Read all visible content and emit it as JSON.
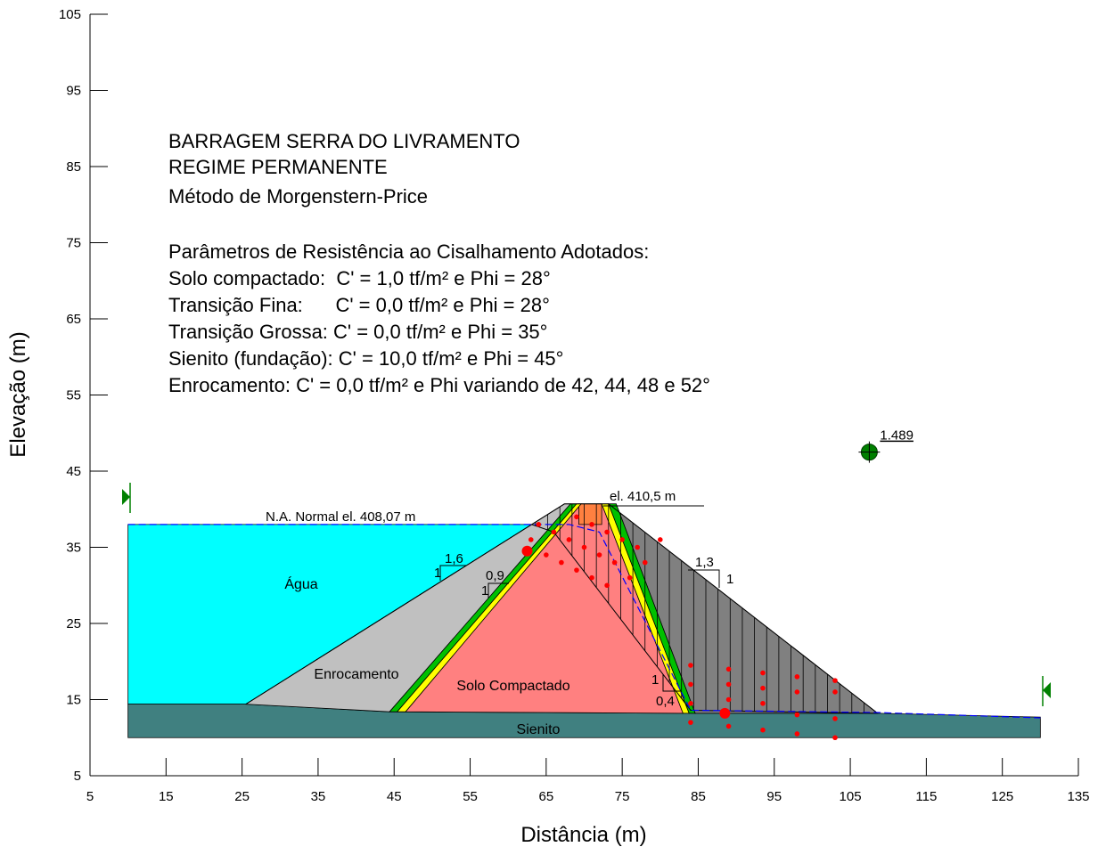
{
  "chart_data": {
    "type": "cross-section",
    "xlabel": "Distância (m)",
    "ylabel": "Elevação (m)",
    "xlim": [
      5,
      135
    ],
    "ylim": [
      5,
      105
    ],
    "xticks": [
      5,
      15,
      25,
      35,
      45,
      55,
      65,
      75,
      85,
      95,
      105,
      115,
      125,
      135
    ],
    "yticks": [
      5,
      15,
      25,
      35,
      45,
      55,
      65,
      75,
      85,
      95,
      105
    ],
    "notes": [
      "BARRAGEM SERRA DO LIVRAMENTO",
      "REGIME PERMANENTE",
      "Método de Morgenstern-Price",
      "Parâmetros de Resistência ao Cisalhamento Adotados:",
      "Solo compactado:  C' = 1,0 tf/m² e Phi = 28°",
      "Transição Fina:      C' = 0,0 tf/m² e Phi = 28°",
      "Transição Grossa: C' = 0,0 tf/m² e Phi = 35°",
      "Sienito (fundação): C' = 10,0 tf/m² e Phi = 45°",
      "Enrocamento: C' = 0,0 tf/m² e Phi variando de 42, 44, 48 e 52°"
    ],
    "regions": [
      {
        "name": "Água",
        "color": "#00ffff",
        "points": [
          [
            10,
            38
          ],
          [
            63.1,
            38
          ],
          [
            25.5,
            14.4
          ],
          [
            10,
            14.4
          ]
        ]
      },
      {
        "name": "Sienito",
        "color": "#408080",
        "points": [
          [
            10,
            14.4
          ],
          [
            25.5,
            14.4
          ],
          [
            44.4,
            13.4
          ],
          [
            84,
            13.2
          ],
          [
            108.6,
            13.2
          ],
          [
            130,
            12.7
          ],
          [
            130,
            10
          ],
          [
            10,
            10
          ]
        ]
      },
      {
        "name": "Enrocamento",
        "color": "#c0c0c0",
        "points": [
          [
            25.5,
            14.4
          ],
          [
            67.4,
            40.7
          ],
          [
            68.2,
            40.7
          ],
          [
            44.4,
            13.4
          ]
        ]
      },
      {
        "color": "#808080",
        "points": [
          [
            73.2,
            40.7
          ],
          [
            108.6,
            13.2
          ],
          [
            84.6,
            13.2
          ],
          [
            74.2,
            40.7
          ]
        ]
      },
      {
        "name": "Solo Compactado",
        "color": "#ff8080",
        "points": [
          [
            46.5,
            13.4
          ],
          [
            69.6,
            40.7
          ],
          [
            72.3,
            40.7
          ],
          [
            83,
            13.2
          ]
        ]
      },
      {
        "color": "#ff8040",
        "points": [
          [
            69.3,
            40.7
          ],
          [
            72.3,
            40.7
          ],
          [
            72.3,
            38
          ],
          [
            69.3,
            38
          ]
        ]
      },
      {
        "color": "#00c000",
        "points": [
          [
            44.4,
            13.4
          ],
          [
            68.2,
            40.7
          ],
          [
            69,
            40.7
          ],
          [
            45.4,
            13.4
          ]
        ]
      },
      {
        "color": "#ffff00",
        "points": [
          [
            45.4,
            13.4
          ],
          [
            69,
            40.7
          ],
          [
            69.6,
            40.7
          ],
          [
            46.5,
            13.4
          ]
        ]
      },
      {
        "color": "#ffff00",
        "points": [
          [
            72.3,
            40.7
          ],
          [
            73.2,
            40.7
          ],
          [
            83.8,
            13.2
          ],
          [
            83,
            13.2
          ]
        ]
      },
      {
        "color": "#00c000",
        "points": [
          [
            73.2,
            40.7
          ],
          [
            74.2,
            40.7
          ],
          [
            84.6,
            13.2
          ],
          [
            83.8,
            13.2
          ]
        ]
      }
    ],
    "surface": [
      [
        25.5,
        14.4
      ],
      [
        67.4,
        40.7
      ],
      [
        73.2,
        40.7
      ],
      [
        108.6,
        13.2
      ]
    ],
    "slip_surface": [
      [
        63.1,
        38
      ],
      [
        66,
        37
      ],
      [
        84,
        13.6
      ],
      [
        108.6,
        13.2
      ]
    ],
    "phreatic": [
      [
        10,
        38
      ],
      [
        68,
        38
      ],
      [
        72,
        37
      ],
      [
        84,
        13.6
      ],
      [
        108.6,
        13.3
      ],
      [
        130,
        12.6
      ]
    ],
    "grid_points": [
      [
        63,
        36
      ],
      [
        64,
        38
      ],
      [
        65,
        34
      ],
      [
        66,
        37
      ],
      [
        67,
        33
      ],
      [
        68,
        36
      ],
      [
        69,
        39
      ],
      [
        69,
        32
      ],
      [
        70,
        35
      ],
      [
        71,
        38
      ],
      [
        71,
        31
      ],
      [
        72,
        34
      ],
      [
        73,
        37
      ],
      [
        73,
        30
      ],
      [
        74,
        33
      ],
      [
        75,
        36
      ],
      [
        76,
        31
      ],
      [
        77,
        35
      ],
      [
        78,
        33
      ],
      [
        80,
        36
      ],
      [
        84,
        19.5
      ],
      [
        84,
        17
      ],
      [
        84,
        14.5
      ],
      [
        84,
        12
      ],
      [
        89,
        19
      ],
      [
        89,
        17
      ],
      [
        89,
        15
      ],
      [
        89,
        11.5
      ],
      [
        93.5,
        18.5
      ],
      [
        93.5,
        16.5
      ],
      [
        93.5,
        14.5
      ],
      [
        93.5,
        11
      ],
      [
        98,
        18
      ],
      [
        98,
        16
      ],
      [
        98,
        13
      ],
      [
        98,
        10.5
      ],
      [
        103,
        17.5
      ],
      [
        103,
        16
      ],
      [
        103,
        12.5
      ],
      [
        103,
        10
      ]
    ],
    "critical_points": [
      [
        62.5,
        34.5
      ],
      [
        88.5,
        13.2
      ]
    ],
    "slip_center": [
      107.5,
      47.5
    ],
    "factor_of_safety": 1.489,
    "annotations": [
      "N.A. Normal el. 408,07 m",
      "el. 410,5 m",
      "1,6",
      "1",
      "0,9",
      "1",
      "1,3",
      "1",
      "1",
      "0,4"
    ]
  }
}
